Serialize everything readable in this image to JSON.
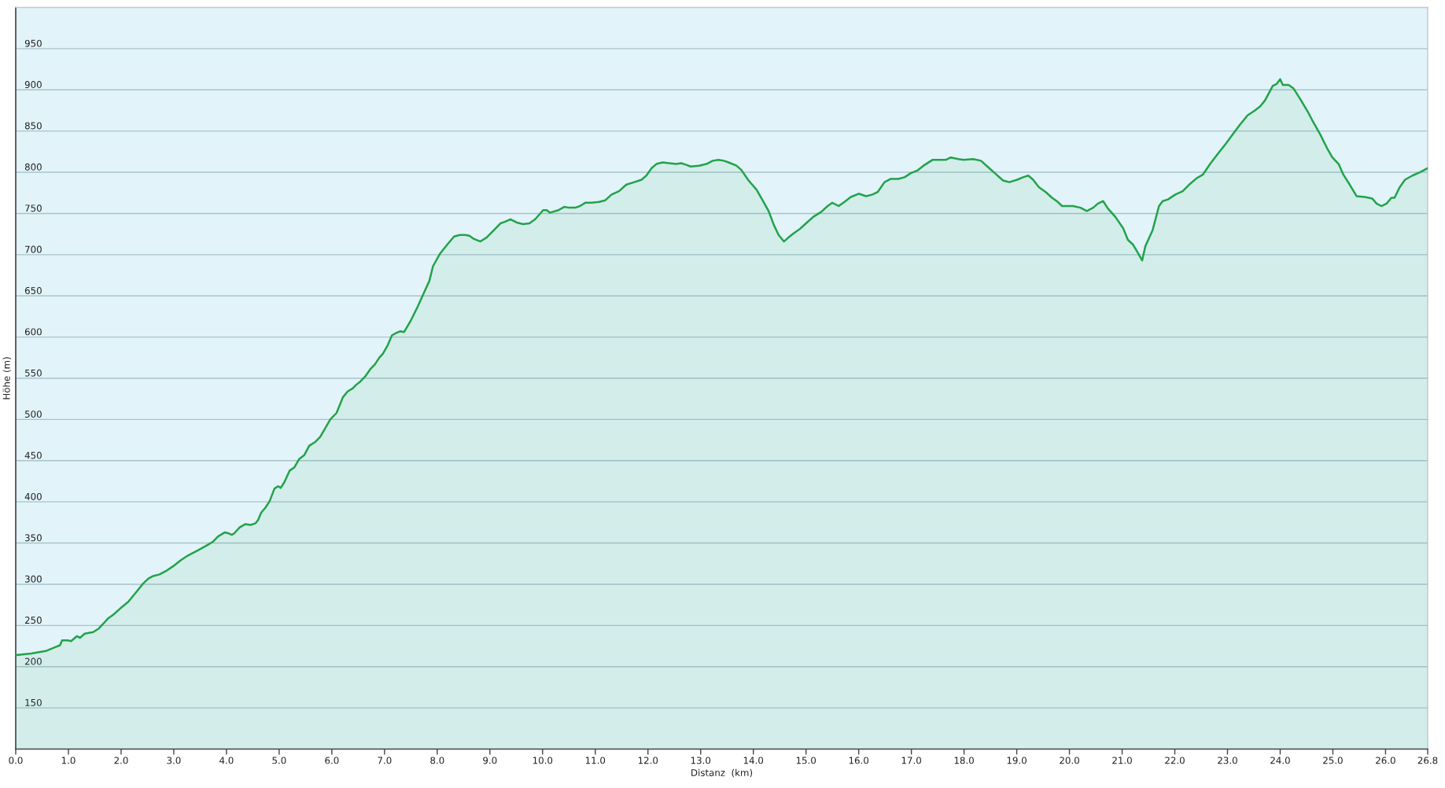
{
  "chart_data": {
    "type": "area",
    "xlabel": "Distanz  (km)",
    "ylabel": "Höhe (m)",
    "x": [
      0,
      0.29,
      0.57,
      0.76,
      0.84,
      0.88,
      0.98,
      1.05,
      1.16,
      1.22,
      1.31,
      1.47,
      1.57,
      1.66,
      1.76,
      1.85,
      1.99,
      2.14,
      2.28,
      2.42,
      2.52,
      2.61,
      2.73,
      2.85,
      2.99,
      3.13,
      3.27,
      3.42,
      3.51,
      3.65,
      3.75,
      3.84,
      3.97,
      4.03,
      4.1,
      4.15,
      4.25,
      4.36,
      4.46,
      4.55,
      4.6,
      4.66,
      4.74,
      4.82,
      4.91,
      4.98,
      5.03,
      5.1,
      5.2,
      5.29,
      5.38,
      5.48,
      5.57,
      5.69,
      5.78,
      5.88,
      5.97,
      6.09,
      6.21,
      6.3,
      6.4,
      6.46,
      6.54,
      6.63,
      6.73,
      6.82,
      6.9,
      6.97,
      7.06,
      7.14,
      7.22,
      7.3,
      7.37,
      7.49,
      7.63,
      7.77,
      7.85,
      7.92,
      8.05,
      8.2,
      8.32,
      8.43,
      8.53,
      8.61,
      8.7,
      8.82,
      8.94,
      9.08,
      9.2,
      9.29,
      9.39,
      9.51,
      9.63,
      9.75,
      9.86,
      10.01,
      10.08,
      10.14,
      10.3,
      10.41,
      10.5,
      10.62,
      10.71,
      10.81,
      10.93,
      11.07,
      11.19,
      11.31,
      11.45,
      11.59,
      11.74,
      11.88,
      11.97,
      12.07,
      12.16,
      12.28,
      12.4,
      12.54,
      12.63,
      12.73,
      12.81,
      12.97,
      13.11,
      13.23,
      13.34,
      13.44,
      13.53,
      13.68,
      13.77,
      13.91,
      14.06,
      14.15,
      14.29,
      14.39,
      14.48,
      14.58,
      14.67,
      14.77,
      14.88,
      15.0,
      15.14,
      15.29,
      15.41,
      15.5,
      15.62,
      15.73,
      15.85,
      16.0,
      16.14,
      16.26,
      16.36,
      16.49,
      16.61,
      16.75,
      16.87,
      16.99,
      17.11,
      17.23,
      17.4,
      17.56,
      17.65,
      17.75,
      17.89,
      17.99,
      18.17,
      18.32,
      18.46,
      18.6,
      18.74,
      18.86,
      19.01,
      19.12,
      19.22,
      19.31,
      19.42,
      19.55,
      19.67,
      19.78,
      19.86,
      20.07,
      20.21,
      20.33,
      20.45,
      20.54,
      20.64,
      20.73,
      20.87,
      21.02,
      21.11,
      21.21,
      21.3,
      21.38,
      21.44,
      21.58,
      21.7,
      21.77,
      21.87,
      22.01,
      22.15,
      22.29,
      22.42,
      22.53,
      22.67,
      22.8,
      22.96,
      23.1,
      23.24,
      23.38,
      23.52,
      23.62,
      23.71,
      23.86,
      23.93,
      24.0,
      24.05,
      24.16,
      24.25,
      24.38,
      24.52,
      24.61,
      24.76,
      24.9,
      24.99,
      25.11,
      25.2,
      25.32,
      25.45,
      25.61,
      25.75,
      25.83,
      25.92,
      26.02,
      26.11,
      26.17,
      26.27,
      26.37,
      26.51,
      26.65,
      26.77,
      26.8
    ],
    "series": [
      {
        "color": "#22a34a",
        "values": [
          214,
          216,
          219,
          224,
          226,
          232,
          232,
          231,
          237,
          235,
          240,
          242,
          246,
          252,
          259,
          263,
          271,
          279,
          290,
          301,
          307,
          310,
          312,
          316,
          322,
          329,
          335,
          340,
          343,
          348,
          352,
          358,
          363,
          362,
          360,
          362,
          369,
          373,
          372,
          374,
          378,
          387,
          393,
          401,
          416,
          419,
          417,
          424,
          438,
          442,
          452,
          457,
          468,
          473,
          479,
          490,
          500,
          508,
          527,
          534,
          538,
          542,
          546,
          552,
          561,
          567,
          575,
          580,
          590,
          602,
          605,
          607,
          606,
          619,
          637,
          657,
          668,
          686,
          701,
          713,
          722,
          724,
          724,
          723,
          719,
          716,
          721,
          730,
          738,
          740,
          743,
          739,
          737,
          738,
          743,
          754,
          754,
          751,
          754,
          758,
          757,
          757,
          759,
          763,
          763,
          764,
          766,
          773,
          777,
          785,
          788,
          791,
          796,
          805,
          810,
          812,
          811,
          810,
          811,
          809,
          807,
          808,
          810,
          814,
          815,
          814,
          812,
          808,
          803,
          790,
          779,
          769,
          753,
          736,
          724,
          716,
          721,
          726,
          731,
          738,
          746,
          752,
          759,
          763,
          759,
          764,
          770,
          774,
          771,
          773,
          776,
          788,
          792,
          792,
          794,
          799,
          802,
          808,
          815,
          815,
          815,
          818,
          816,
          815,
          816,
          814,
          806,
          798,
          790,
          788,
          791,
          794,
          796,
          791,
          782,
          776,
          769,
          764,
          759,
          759,
          757,
          753,
          757,
          762,
          765,
          756,
          746,
          732,
          718,
          712,
          702,
          693,
          710,
          730,
          759,
          765,
          767,
          773,
          777,
          786,
          793,
          797,
          810,
          821,
          834,
          846,
          858,
          869,
          875,
          880,
          887,
          905,
          907,
          913,
          906,
          906,
          902,
          889,
          874,
          863,
          846,
          828,
          818,
          810,
          797,
          785,
          771,
          770,
          768,
          762,
          759,
          762,
          769,
          769,
          782,
          791,
          796,
          800,
          804,
          805
        ]
      }
    ],
    "xlim": [
      0,
      26.8
    ],
    "xticks": [
      {
        "value": 0,
        "label": "0.0"
      },
      {
        "value": 1,
        "label": "1.0"
      },
      {
        "value": 2,
        "label": "2.0"
      },
      {
        "value": 3,
        "label": "3.0"
      },
      {
        "value": 4,
        "label": "4.0"
      },
      {
        "value": 5,
        "label": "5.0"
      },
      {
        "value": 6,
        "label": "6.0"
      },
      {
        "value": 7,
        "label": "7.0"
      },
      {
        "value": 8,
        "label": "8.0"
      },
      {
        "value": 9,
        "label": "9.0"
      },
      {
        "value": 10,
        "label": "10.0"
      },
      {
        "value": 11,
        "label": "11.0"
      },
      {
        "value": 12,
        "label": "12.0"
      },
      {
        "value": 13,
        "label": "13.0"
      },
      {
        "value": 14,
        "label": "14.0"
      },
      {
        "value": 15,
        "label": "15.0"
      },
      {
        "value": 16,
        "label": "16.0"
      },
      {
        "value": 17,
        "label": "17.0"
      },
      {
        "value": 18,
        "label": "18.0"
      },
      {
        "value": 19,
        "label": "19.0"
      },
      {
        "value": 20,
        "label": "20.0"
      },
      {
        "value": 21,
        "label": "21.0"
      },
      {
        "value": 22,
        "label": "22.0"
      },
      {
        "value": 23,
        "label": "23.0"
      },
      {
        "value": 24,
        "label": "24.0"
      },
      {
        "value": 25,
        "label": "25.0"
      },
      {
        "value": 26,
        "label": "26.0"
      },
      {
        "value": 26.8,
        "label": "26.8"
      }
    ],
    "ylim": [
      100,
      1000
    ],
    "yticks": [
      150,
      200,
      250,
      300,
      350,
      400,
      450,
      500,
      550,
      600,
      650,
      700,
      750,
      800,
      850,
      900,
      950
    ],
    "grid": "y",
    "line_style": "solid"
  }
}
